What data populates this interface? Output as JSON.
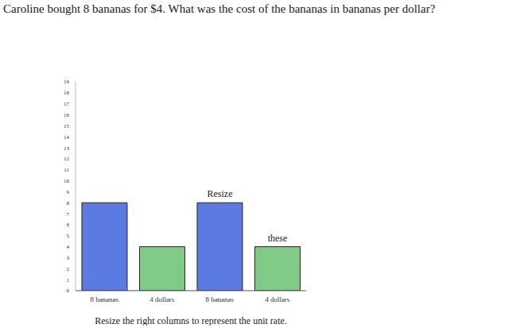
{
  "chart_data": {
    "type": "bar",
    "title": "Caroline bought 8 bananas for $4. What was the cost of the bananas in bananas per dollar?",
    "xlabel": "Resize the right columns to represent the unit rate.",
    "categories": [
      "8 bananas",
      "4 dollars",
      "8 bananas",
      "4 dollars"
    ],
    "values": [
      8,
      4,
      8,
      4
    ],
    "colors": [
      "#5b7be3",
      "#80cc86",
      "#5b7be3",
      "#80cc86"
    ],
    "ylim": [
      0,
      19
    ],
    "yticks": [
      0,
      1,
      2,
      3,
      4,
      5,
      6,
      7,
      8,
      9,
      10,
      11,
      12,
      13,
      14,
      15,
      16,
      17,
      18,
      19
    ],
    "grid": false,
    "annotations": [
      {
        "text": "Resize",
        "category_index": 2
      },
      {
        "text": "these",
        "category_index": 3
      }
    ]
  }
}
